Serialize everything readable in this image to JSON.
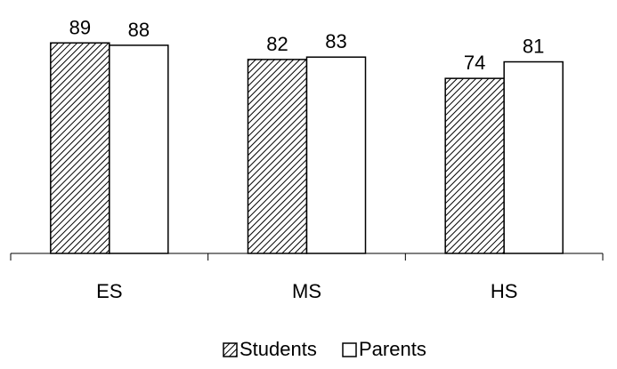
{
  "chart_data": {
    "type": "bar",
    "categories": [
      "ES",
      "MS",
      "HS"
    ],
    "series": [
      {
        "name": "Students",
        "values": [
          89,
          82,
          74
        ],
        "fill": "hatch"
      },
      {
        "name": "Parents",
        "values": [
          88,
          83,
          81
        ],
        "fill": "#ffffff"
      }
    ],
    "ylim": [
      0,
      100
    ],
    "legend_position": "bottom",
    "grid": false
  }
}
